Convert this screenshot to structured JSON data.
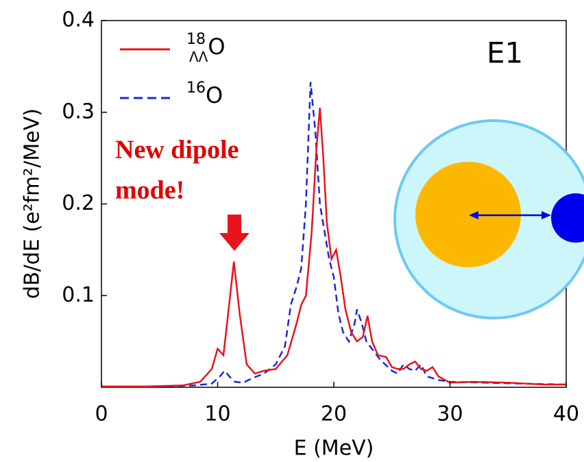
{
  "chart_data": {
    "type": "line",
    "xlabel": "E (MeV)",
    "ylabel": "dB/dE (e²fm²/MeV)",
    "xlim": [
      0,
      40
    ],
    "ylim": [
      0,
      0.4
    ],
    "xticks": [
      0,
      10,
      20,
      30,
      40
    ],
    "yticks": [
      0.1,
      0.2,
      0.3,
      0.4
    ],
    "annotations": [
      "E1",
      "New dipole",
      "mode!"
    ],
    "series": [
      {
        "name": "18ΛΛO",
        "color": "#e8141c",
        "dash": "solid",
        "x": [
          0,
          4,
          7,
          8.5,
          9.5,
          10,
          10.5,
          10.9,
          11.4,
          11.9,
          12.5,
          13.2,
          14,
          15,
          16,
          16.8,
          17.2,
          17.6,
          18.1,
          18.5,
          18.8,
          19.1,
          19.4,
          19.8,
          20.2,
          20.6,
          21,
          21.5,
          22,
          22.5,
          22.9,
          23.3,
          23.8,
          24.5,
          25,
          25.5,
          26,
          26.5,
          27,
          27.5,
          28,
          28.5,
          29,
          30,
          32,
          35,
          38,
          40
        ],
        "values": [
          0.001,
          0.001,
          0.002,
          0.006,
          0.02,
          0.042,
          0.035,
          0.08,
          0.137,
          0.08,
          0.025,
          0.015,
          0.018,
          0.02,
          0.035,
          0.07,
          0.09,
          0.1,
          0.17,
          0.26,
          0.305,
          0.25,
          0.18,
          0.14,
          0.15,
          0.12,
          0.085,
          0.06,
          0.05,
          0.055,
          0.078,
          0.05,
          0.035,
          0.033,
          0.022,
          0.02,
          0.02,
          0.025,
          0.028,
          0.02,
          0.018,
          0.022,
          0.012,
          0.005,
          0.006,
          0.005,
          0.003,
          0.003
        ]
      },
      {
        "name": "16O",
        "color": "#1a28d8",
        "dash": "dashed",
        "x": [
          0,
          5,
          8,
          9.5,
          10.2,
          10.6,
          11,
          11.5,
          12.2,
          13,
          14,
          15,
          15.8,
          16.3,
          16.8,
          17.2,
          17.6,
          18,
          18.4,
          18.8,
          19.2,
          19.6,
          20,
          20.4,
          20.8,
          21.3,
          21.8,
          22,
          22.4,
          22.8,
          23.4,
          24,
          25,
          25.5,
          26,
          26.5,
          27,
          27.5,
          28,
          29,
          30,
          33,
          36,
          40
        ],
        "values": [
          0.001,
          0.001,
          0.002,
          0.004,
          0.012,
          0.018,
          0.012,
          0.006,
          0.005,
          0.01,
          0.015,
          0.025,
          0.045,
          0.09,
          0.11,
          0.13,
          0.2,
          0.333,
          0.28,
          0.2,
          0.17,
          0.14,
          0.12,
          0.08,
          0.06,
          0.05,
          0.07,
          0.085,
          0.07,
          0.05,
          0.04,
          0.03,
          0.018,
          0.015,
          0.025,
          0.02,
          0.018,
          0.025,
          0.012,
          0.008,
          0.006,
          0.005,
          0.004,
          0.003
        ]
      }
    ]
  }
}
